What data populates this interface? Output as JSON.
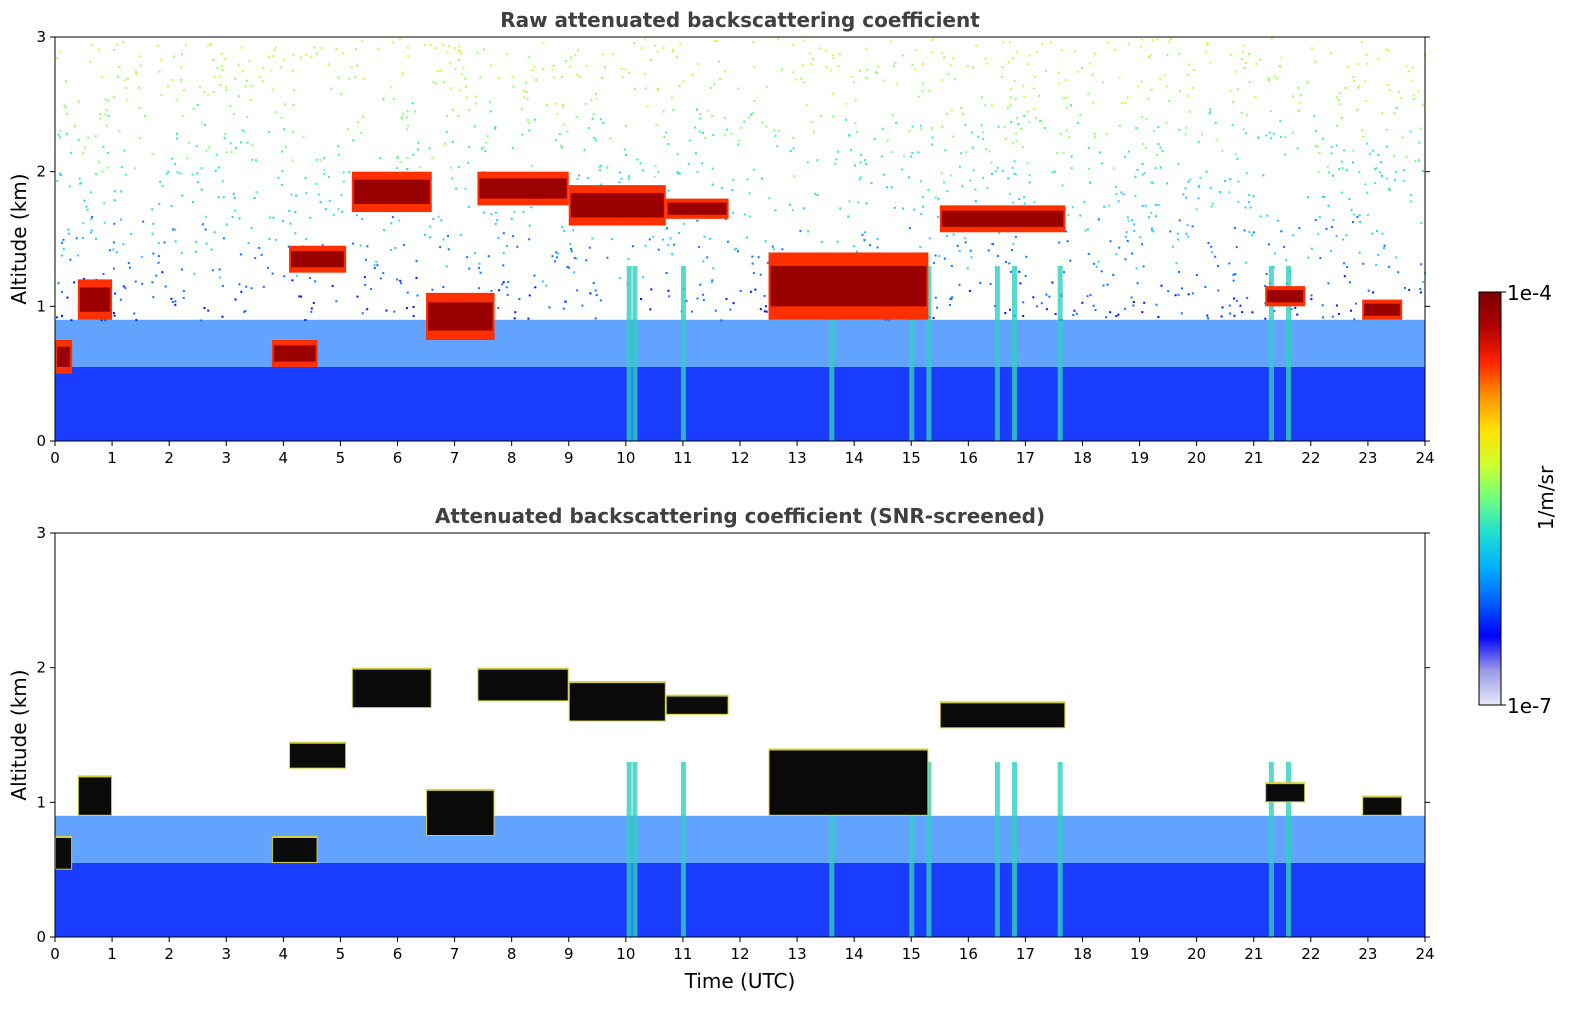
{
  "chart_data": [
    {
      "type": "heatmap",
      "title": "Raw attenuated backscattering coefficient",
      "xlabel": "",
      "ylabel": "Altitude (km)",
      "xlim": [
        0,
        24
      ],
      "ylim": [
        0,
        3
      ],
      "xticks": [
        "0",
        "1",
        "2",
        "3",
        "4",
        "5",
        "6",
        "7",
        "8",
        "9",
        "10",
        "11",
        "12",
        "13",
        "14",
        "15",
        "16",
        "17",
        "18",
        "19",
        "20",
        "21",
        "22",
        "23",
        "24"
      ],
      "yticks": [
        "0",
        "1",
        "2",
        "3"
      ],
      "scale": "log",
      "noise": "speckled background increasing with altitude",
      "layers": [
        {
          "x": [
            0.0,
            0.3
          ],
          "y": [
            0.5,
            0.75
          ],
          "level": "high"
        },
        {
          "x": [
            0.4,
            1.0
          ],
          "y": [
            0.9,
            1.2
          ],
          "level": "high"
        },
        {
          "x": [
            3.8,
            4.6
          ],
          "y": [
            0.55,
            0.75
          ],
          "level": "high"
        },
        {
          "x": [
            4.1,
            5.1
          ],
          "y": [
            1.25,
            1.45
          ],
          "level": "high"
        },
        {
          "x": [
            5.2,
            6.6
          ],
          "y": [
            1.7,
            2.0
          ],
          "level": "high"
        },
        {
          "x": [
            6.5,
            7.7
          ],
          "y": [
            0.75,
            1.1
          ],
          "level": "high"
        },
        {
          "x": [
            7.4,
            9.0
          ],
          "y": [
            1.75,
            2.0
          ],
          "level": "high"
        },
        {
          "x": [
            9.0,
            10.7
          ],
          "y": [
            1.6,
            1.9
          ],
          "level": "high"
        },
        {
          "x": [
            10.7,
            11.8
          ],
          "y": [
            1.65,
            1.8
          ],
          "level": "high"
        },
        {
          "x": [
            12.5,
            15.3
          ],
          "y": [
            0.9,
            1.4
          ],
          "level": "high"
        },
        {
          "x": [
            15.5,
            17.7
          ],
          "y": [
            1.55,
            1.75
          ],
          "level": "high"
        },
        {
          "x": [
            21.2,
            21.9
          ],
          "y": [
            1.0,
            1.15
          ],
          "level": "high"
        },
        {
          "x": [
            22.9,
            23.6
          ],
          "y": [
            0.9,
            1.05
          ],
          "level": "high"
        }
      ],
      "precipitation_streaks_x": [
        10.05,
        10.15,
        11.0,
        13.6,
        15.0,
        15.3,
        16.5,
        16.8,
        17.6,
        21.3,
        21.6
      ]
    },
    {
      "type": "heatmap",
      "title": "Attenuated backscattering coefficient (SNR-screened)",
      "xlabel": "Time (UTC)",
      "ylabel": "Altitude (km)",
      "xlim": [
        0,
        24
      ],
      "ylim": [
        0,
        3
      ],
      "xticks": [
        "0",
        "1",
        "2",
        "3",
        "4",
        "5",
        "6",
        "7",
        "8",
        "9",
        "10",
        "11",
        "12",
        "13",
        "14",
        "15",
        "16",
        "17",
        "18",
        "19",
        "20",
        "21",
        "22",
        "23",
        "24"
      ],
      "yticks": [
        "0",
        "1",
        "2",
        "3"
      ],
      "scale": "log",
      "noise": "screened out (white above boundary layer)",
      "layers": [
        {
          "x": [
            0.0,
            0.3
          ],
          "y": [
            0.5,
            0.75
          ],
          "level": "saturated"
        },
        {
          "x": [
            0.4,
            1.0
          ],
          "y": [
            0.9,
            1.2
          ],
          "level": "saturated"
        },
        {
          "x": [
            3.8,
            4.6
          ],
          "y": [
            0.55,
            0.75
          ],
          "level": "saturated"
        },
        {
          "x": [
            4.1,
            5.1
          ],
          "y": [
            1.25,
            1.45
          ],
          "level": "saturated"
        },
        {
          "x": [
            5.2,
            6.6
          ],
          "y": [
            1.7,
            2.0
          ],
          "level": "saturated"
        },
        {
          "x": [
            6.5,
            7.7
          ],
          "y": [
            0.75,
            1.1
          ],
          "level": "saturated"
        },
        {
          "x": [
            7.4,
            9.0
          ],
          "y": [
            1.75,
            2.0
          ],
          "level": "saturated"
        },
        {
          "x": [
            9.0,
            10.7
          ],
          "y": [
            1.6,
            1.9
          ],
          "level": "saturated"
        },
        {
          "x": [
            10.7,
            11.8
          ],
          "y": [
            1.65,
            1.8
          ],
          "level": "saturated"
        },
        {
          "x": [
            12.5,
            15.3
          ],
          "y": [
            0.9,
            1.4
          ],
          "level": "saturated"
        },
        {
          "x": [
            15.5,
            17.7
          ],
          "y": [
            1.55,
            1.75
          ],
          "level": "saturated"
        },
        {
          "x": [
            21.2,
            21.9
          ],
          "y": [
            1.0,
            1.15
          ],
          "level": "saturated"
        },
        {
          "x": [
            22.9,
            23.6
          ],
          "y": [
            0.9,
            1.05
          ],
          "level": "saturated"
        }
      ],
      "precipitation_streaks_x": [
        10.05,
        10.15,
        11.0,
        13.6,
        15.0,
        15.3,
        16.5,
        16.8,
        17.6,
        21.3,
        21.6
      ]
    }
  ],
  "colorbar": {
    "label": "1/m/sr",
    "max_label": "1e-4",
    "min_label": "1e-7",
    "range": [
      1e-07,
      0.0001
    ],
    "colormap": [
      "#e8e8f8",
      "#9a9ae8",
      "#0000ff",
      "#0060ff",
      "#00b0ff",
      "#20e0d0",
      "#70ff80",
      "#d0ff30",
      "#ffe000",
      "#ff9000",
      "#ff2000",
      "#b00000",
      "#7a0000"
    ]
  }
}
